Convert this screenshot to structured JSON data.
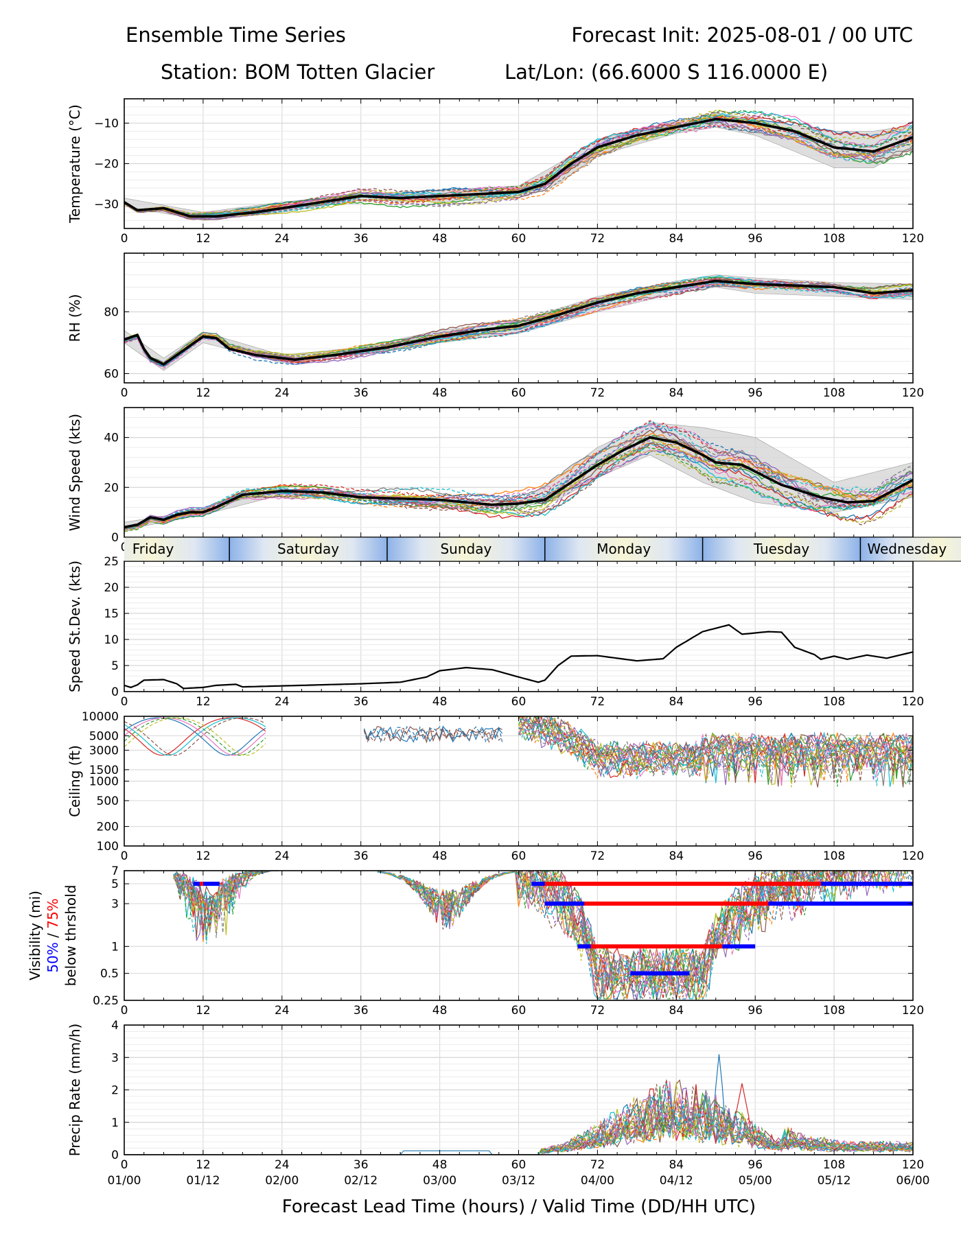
{
  "header": {
    "left_title": "Ensemble Time Series",
    "right_title": "Forecast Init: 2025-08-01 / 00 UTC",
    "station": "Station: BOM Totten Glacier",
    "latlon": "Lat/Lon: (66.6000 S 116.0000 E)"
  },
  "chart_data": [
    {
      "type": "line",
      "id": "temp",
      "ylabel": "Temperature (°C)",
      "xlim": [
        0,
        120
      ],
      "ylim": [
        -36,
        -4
      ],
      "yticks": [
        -10,
        -20,
        -30
      ],
      "ytick_labels": [
        "−10",
        "−20",
        "−30"
      ],
      "xticks": [
        0,
        12,
        24,
        36,
        48,
        60,
        72,
        84,
        96,
        108,
        120
      ],
      "mean": [
        [
          0,
          -29.5
        ],
        [
          2,
          -31.5
        ],
        [
          6,
          -31
        ],
        [
          10,
          -33
        ],
        [
          14,
          -33
        ],
        [
          20,
          -32
        ],
        [
          26,
          -30.5
        ],
        [
          36,
          -28
        ],
        [
          42,
          -28.5
        ],
        [
          48,
          -28
        ],
        [
          54,
          -27.5
        ],
        [
          60,
          -27
        ],
        [
          64,
          -25
        ],
        [
          68,
          -20
        ],
        [
          72,
          -16
        ],
        [
          78,
          -13
        ],
        [
          84,
          -11
        ],
        [
          90,
          -9
        ],
        [
          96,
          -10
        ],
        [
          102,
          -12
        ],
        [
          108,
          -16
        ],
        [
          114,
          -17
        ],
        [
          120,
          -13.5
        ]
      ],
      "spread_low": [
        [
          0,
          -30.5
        ],
        [
          12,
          -34
        ],
        [
          24,
          -32
        ],
        [
          36,
          -29
        ],
        [
          48,
          -29.5
        ],
        [
          60,
          -28.5
        ],
        [
          66,
          -25
        ],
        [
          72,
          -18
        ],
        [
          84,
          -12.5
        ],
        [
          90,
          -11
        ],
        [
          96,
          -13
        ],
        [
          108,
          -21
        ],
        [
          114,
          -21
        ],
        [
          120,
          -16
        ]
      ],
      "spread_high": [
        [
          0,
          -28.5
        ],
        [
          12,
          -32
        ],
        [
          24,
          -29.5
        ],
        [
          36,
          -27.5
        ],
        [
          48,
          -26.5
        ],
        [
          60,
          -25.5
        ],
        [
          66,
          -20
        ],
        [
          72,
          -14
        ],
        [
          84,
          -9.5
        ],
        [
          90,
          -7.5
        ],
        [
          96,
          -9
        ],
        [
          108,
          -12
        ],
        [
          114,
          -12
        ],
        [
          120,
          -10.5
        ]
      ],
      "band_halfwidth": [
        0.5,
        3,
        4
      ]
    },
    {
      "type": "line",
      "id": "rh",
      "ylabel": "RH (%)",
      "xlim": [
        0,
        120
      ],
      "ylim": [
        57,
        99
      ],
      "yticks": [
        60,
        80
      ],
      "ytick_labels": [
        "60",
        "80"
      ],
      "xticks": [
        0,
        12,
        24,
        36,
        48,
        60,
        72,
        84,
        96,
        108,
        120
      ],
      "mean": [
        [
          0,
          71
        ],
        [
          2,
          72.5
        ],
        [
          3,
          68
        ],
        [
          4,
          65
        ],
        [
          6,
          63
        ],
        [
          8,
          66
        ],
        [
          10,
          69
        ],
        [
          12,
          72
        ],
        [
          14,
          71.5
        ],
        [
          16,
          68
        ],
        [
          20,
          66
        ],
        [
          26,
          64.5
        ],
        [
          32,
          66
        ],
        [
          40,
          68.5
        ],
        [
          48,
          72
        ],
        [
          54,
          74
        ],
        [
          60,
          75.5
        ],
        [
          66,
          79
        ],
        [
          72,
          83
        ],
        [
          78,
          86
        ],
        [
          84,
          88
        ],
        [
          90,
          90
        ],
        [
          96,
          89
        ],
        [
          102,
          88.5
        ],
        [
          108,
          88
        ],
        [
          114,
          86
        ],
        [
          120,
          87
        ]
      ],
      "spread_low": [
        [
          0,
          70
        ],
        [
          6,
          61
        ],
        [
          12,
          70
        ],
        [
          24,
          63.5
        ],
        [
          36,
          66
        ],
        [
          48,
          70
        ],
        [
          60,
          73
        ],
        [
          72,
          80
        ],
        [
          84,
          86
        ],
        [
          90,
          88
        ],
        [
          96,
          86
        ],
        [
          108,
          85
        ],
        [
          120,
          84
        ]
      ],
      "spread_high": [
        [
          0,
          74
        ],
        [
          6,
          65
        ],
        [
          12,
          73.5
        ],
        [
          24,
          66
        ],
        [
          36,
          68.5
        ],
        [
          48,
          74
        ],
        [
          60,
          77
        ],
        [
          72,
          85
        ],
        [
          84,
          90
        ],
        [
          90,
          92
        ],
        [
          96,
          91
        ],
        [
          108,
          89.5
        ],
        [
          120,
          89
        ]
      ],
      "band_halfwidth": [
        1.2,
        2.5,
        3
      ]
    },
    {
      "type": "line",
      "id": "wind",
      "ylabel": "Wind Speed (kts)",
      "xlim": [
        0,
        120
      ],
      "ylim": [
        0,
        52
      ],
      "yticks": [
        0,
        20,
        40
      ],
      "ytick_labels": [
        "0",
        "20",
        "40"
      ],
      "xticks": [
        0,
        12,
        24,
        36,
        48,
        60,
        72,
        84,
        96,
        108,
        120
      ],
      "mean": [
        [
          0,
          4
        ],
        [
          2,
          5
        ],
        [
          4,
          8
        ],
        [
          6,
          7
        ],
        [
          8,
          9
        ],
        [
          10,
          10
        ],
        [
          12,
          10
        ],
        [
          14,
          12
        ],
        [
          18,
          17
        ],
        [
          24,
          18.5
        ],
        [
          30,
          18
        ],
        [
          36,
          16
        ],
        [
          48,
          15
        ],
        [
          56,
          13
        ],
        [
          60,
          13.5
        ],
        [
          64,
          15
        ],
        [
          68,
          22
        ],
        [
          72,
          29
        ],
        [
          76,
          35
        ],
        [
          80,
          40
        ],
        [
          84,
          38
        ],
        [
          88,
          33
        ],
        [
          90,
          30
        ],
        [
          94,
          29
        ],
        [
          100,
          21
        ],
        [
          106,
          16
        ],
        [
          110,
          14
        ],
        [
          114,
          14.5
        ],
        [
          120,
          23
        ]
      ],
      "spread_low": [
        [
          0,
          3
        ],
        [
          12,
          9
        ],
        [
          24,
          17
        ],
        [
          36,
          15
        ],
        [
          48,
          13
        ],
        [
          60,
          12
        ],
        [
          66,
          15
        ],
        [
          72,
          24
        ],
        [
          80,
          33
        ],
        [
          88,
          22
        ],
        [
          96,
          14
        ],
        [
          108,
          10
        ],
        [
          120,
          16
        ]
      ],
      "spread_high": [
        [
          0,
          6
        ],
        [
          12,
          11
        ],
        [
          24,
          19.5
        ],
        [
          36,
          17
        ],
        [
          48,
          16
        ],
        [
          60,
          14.5
        ],
        [
          66,
          24
        ],
        [
          72,
          36
        ],
        [
          80,
          46
        ],
        [
          88,
          44
        ],
        [
          96,
          40
        ],
        [
          108,
          22
        ],
        [
          120,
          30
        ]
      ],
      "band_halfwidth": [
        1.5,
        6,
        9
      ]
    },
    {
      "type": "line",
      "id": "std",
      "ylabel": "Speed St.Dev. (kts)",
      "xlim": [
        0,
        120
      ],
      "ylim": [
        0,
        25
      ],
      "yticks": [
        0,
        5,
        10,
        15,
        20,
        25
      ],
      "ytick_labels": [
        "0",
        "5",
        "10",
        "15",
        "20",
        "25"
      ],
      "xticks": [
        0,
        12,
        24,
        36,
        48,
        60,
        72,
        84,
        96,
        108,
        120
      ],
      "mean": [
        [
          0,
          1.2
        ],
        [
          1,
          0.8
        ],
        [
          2,
          1.3
        ],
        [
          3,
          2.2
        ],
        [
          6,
          2.3
        ],
        [
          8,
          1.5
        ],
        [
          9,
          0.6
        ],
        [
          12,
          0.8
        ],
        [
          14,
          1.2
        ],
        [
          17,
          1.4
        ],
        [
          18,
          0.9
        ],
        [
          24,
          1.1
        ],
        [
          36,
          1.5
        ],
        [
          42,
          1.8
        ],
        [
          46,
          2.8
        ],
        [
          48,
          4
        ],
        [
          52,
          4.6
        ],
        [
          56,
          4.2
        ],
        [
          60,
          2.8
        ],
        [
          63,
          1.8
        ],
        [
          64,
          2.2
        ],
        [
          66,
          5
        ],
        [
          68,
          6.8
        ],
        [
          72,
          6.9
        ],
        [
          78,
          5.9
        ],
        [
          82,
          6.3
        ],
        [
          84,
          8.5
        ],
        [
          88,
          11.5
        ],
        [
          92,
          12.8
        ],
        [
          94,
          11
        ],
        [
          98,
          11.5
        ],
        [
          100,
          11.4
        ],
        [
          102,
          8.5
        ],
        [
          105,
          7.1
        ],
        [
          106,
          6.2
        ],
        [
          108,
          6.8
        ],
        [
          110,
          6.2
        ],
        [
          113,
          7
        ],
        [
          116,
          6.4
        ],
        [
          120,
          7.6
        ]
      ]
    },
    {
      "type": "line",
      "id": "ceiling",
      "ylabel": "Ceiling (ft)",
      "yscale": "log",
      "xlim": [
        0,
        120
      ],
      "ylim": [
        100,
        10000
      ],
      "yticks": [
        10000,
        5000,
        3000,
        1500,
        1000,
        500,
        200,
        100
      ],
      "ytick_labels": [
        "10000",
        "5000",
        "3000",
        "1500",
        "1000",
        "500",
        "200",
        "100"
      ],
      "xticks": [
        0,
        12,
        24,
        36,
        48,
        60,
        72,
        84,
        96,
        108,
        120
      ]
    },
    {
      "type": "line",
      "id": "vis",
      "ylabel_lines": [
        "Visibility (mi)",
        "50%",
        " / ",
        "75%",
        "below thrshold"
      ],
      "yscale": "log",
      "xlim": [
        0,
        120
      ],
      "ylim": [
        0.25,
        7
      ],
      "yticks": [
        7,
        5,
        3,
        1,
        0.5,
        0.25
      ],
      "ytick_labels": [
        "7",
        "5",
        "3",
        "1",
        "0.5",
        "0.25"
      ],
      "xticks": [
        0,
        12,
        24,
        36,
        48,
        60,
        72,
        84,
        96,
        108,
        120
      ],
      "threshold_bars": [
        {
          "level": 5,
          "pct": "75%",
          "color": "#ff0000",
          "x": [
            62,
            120
          ]
        },
        {
          "level": 5,
          "pct": "50%",
          "color": "#0000ff",
          "x": [
            62,
            64
          ]
        },
        {
          "level": 5,
          "pct": "50%",
          "color": "#0000ff",
          "x": [
            106,
            120
          ]
        },
        {
          "level": 5,
          "pct": "50%",
          "color": "#0000ff",
          "x": [
            10.5,
            11.5
          ]
        },
        {
          "level": 5,
          "pct": "75%",
          "color": "#ff0000",
          "x": [
            11.5,
            12
          ]
        },
        {
          "level": 5,
          "pct": "50%",
          "color": "#0000ff",
          "x": [
            12,
            14.5
          ]
        },
        {
          "level": 3,
          "pct": "75%",
          "color": "#ff0000",
          "x": [
            64,
            120
          ]
        },
        {
          "level": 3,
          "pct": "50%",
          "color": "#0000ff",
          "x": [
            64,
            70
          ]
        },
        {
          "level": 3,
          "pct": "50%",
          "color": "#0000ff",
          "x": [
            98,
            120
          ]
        },
        {
          "level": 1,
          "pct": "75%",
          "color": "#ff0000",
          "x": [
            69,
            91
          ]
        },
        {
          "level": 1,
          "pct": "50%",
          "color": "#0000ff",
          "x": [
            69,
            71
          ]
        },
        {
          "level": 1,
          "pct": "50%",
          "color": "#0000ff",
          "x": [
            91,
            96
          ]
        },
        {
          "level": 0.5,
          "pct": "50%",
          "color": "#0000ff",
          "x": [
            77,
            86
          ]
        }
      ]
    },
    {
      "type": "line",
      "id": "precip",
      "ylabel": "Precip Rate (mm/h)",
      "xlim": [
        0,
        120
      ],
      "ylim": [
        0,
        4
      ],
      "yticks": [
        0,
        1,
        2,
        3,
        4
      ],
      "ytick_labels": [
        "0",
        "1",
        "2",
        "3",
        "4"
      ],
      "xticks": [
        0,
        12,
        24,
        36,
        48,
        60,
        72,
        84,
        96,
        108,
        120
      ],
      "xtick_labels2": [
        "01/00",
        "01/12",
        "02/00",
        "02/12",
        "03/00",
        "03/12",
        "04/00",
        "04/12",
        "05/00",
        "05/12",
        "06/00"
      ],
      "xlabel": "Forecast Lead Time (hours) / Valid Time (DD/HH UTC)"
    }
  ],
  "day_strip": {
    "days": [
      "Friday",
      "Saturday",
      "Sunday",
      "Monday",
      "Tuesday",
      "Wednesday"
    ],
    "day_start_hours": [
      -8,
      16,
      40,
      64,
      88,
      112
    ],
    "colors": {
      "mid": "#f7f5d6",
      "edge": "#8db2e8"
    }
  },
  "colors": {
    "mean": "#000000",
    "spread": "#d3d3d3",
    "members": [
      "#1f77b4",
      "#ff7f0e",
      "#2ca02c",
      "#d62728",
      "#9467bd",
      "#8c564b",
      "#e377c2",
      "#7f7f7f",
      "#bcbd22",
      "#17becf"
    ]
  }
}
